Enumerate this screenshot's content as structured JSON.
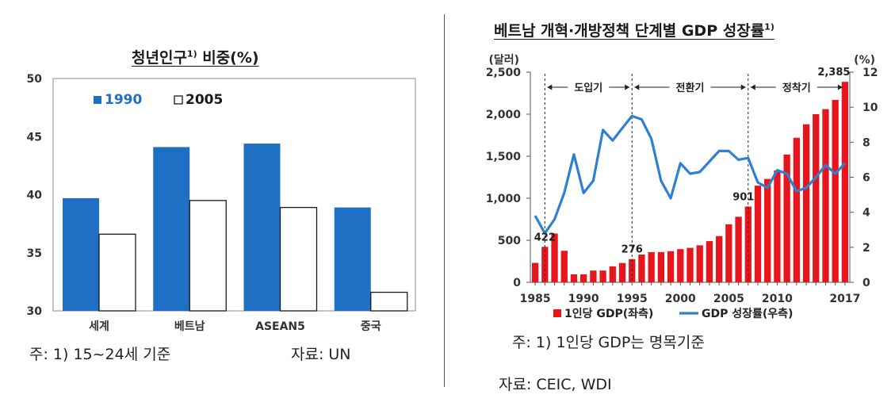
{
  "left_panel": {
    "title": "청년인구",
    "title_sup": "1)",
    "title_suffix": " 비중(%)",
    "note": "주: 1) 15~24세 기준",
    "source": "자료: UN"
  },
  "right_panel": {
    "title": "베트남 개혁·개방정책 단계별 GDP 성장률",
    "title_sup": "1)",
    "note": "주: 1) 1인당 GDP는 명목기준",
    "source": "자료: CEIC, WDI"
  },
  "colors": {
    "primary_bar": "#1f6fc5",
    "secondary_bar": "#ffffff",
    "gdp_bar": "#e8151c",
    "growth_line": "#2f7fd2"
  },
  "chart_data": [
    {
      "type": "bar",
      "categories": [
        "세계",
        "베트남",
        "ASEAN5",
        "중국"
      ],
      "series": [
        {
          "name": "1990",
          "values": [
            39.7,
            44.1,
            44.4,
            38.9
          ]
        },
        {
          "name": "2005",
          "values": [
            36.6,
            39.5,
            38.9,
            31.6
          ]
        }
      ],
      "ylim": [
        30,
        50
      ],
      "yticks": [
        "30",
        "35",
        "40",
        "45",
        "50"
      ],
      "legend_position": "top-left",
      "grid": false
    },
    {
      "type": "bar+line",
      "x": [
        1985,
        1986,
        1987,
        1988,
        1989,
        1990,
        1991,
        1992,
        1993,
        1994,
        1995,
        1996,
        1997,
        1998,
        1999,
        2000,
        2001,
        2002,
        2003,
        2004,
        2005,
        2006,
        2007,
        2008,
        2009,
        2010,
        2011,
        2012,
        2013,
        2014,
        2015,
        2016,
        2017
      ],
      "xticks": [
        "1985",
        "1990",
        "1995",
        "2000",
        "2005",
        "2010",
        "2017"
      ],
      "left_unit": "(달러)",
      "right_unit": "(%)",
      "left_ylim": [
        0,
        2500
      ],
      "right_ylim": [
        0,
        12
      ],
      "left_yticks": [
        "0",
        "500",
        "1,000",
        "1,500",
        "2,000",
        "2,500"
      ],
      "right_yticks": [
        "0",
        "2",
        "4",
        "6",
        "8",
        "10",
        "12"
      ],
      "series": [
        {
          "name": "1인당 GDP(좌측)",
          "axis": "left",
          "kind": "bar",
          "values": [
            231,
            422,
            580,
            375,
            95,
            95,
            140,
            140,
            190,
            230,
            276,
            330,
            360,
            360,
            370,
            395,
            410,
            440,
            490,
            550,
            690,
            780,
            901,
            1150,
            1230,
            1330,
            1520,
            1720,
            1880,
            2000,
            2060,
            2170,
            2385
          ]
        },
        {
          "name": "GDP 성장률(우측)",
          "axis": "right",
          "kind": "line",
          "values": [
            3.8,
            2.8,
            3.6,
            5.1,
            7.3,
            5.1,
            5.8,
            8.7,
            8.1,
            8.8,
            9.5,
            9.3,
            8.2,
            5.8,
            4.8,
            6.8,
            6.2,
            6.3,
            6.9,
            7.5,
            7.5,
            7.0,
            7.1,
            5.7,
            5.4,
            6.4,
            6.2,
            5.2,
            5.4,
            6.0,
            6.7,
            6.2,
            6.8
          ]
        }
      ],
      "data_labels": [
        {
          "x": 1986,
          "text": "422"
        },
        {
          "x": 1995,
          "text": "276"
        },
        {
          "x": 2007,
          "text": "901"
        },
        {
          "x": 2017,
          "text": "2,385"
        }
      ],
      "phases": [
        {
          "label": "도입기",
          "start": 1986,
          "end": 1995
        },
        {
          "label": "전환기",
          "start": 1995,
          "end": 2007
        },
        {
          "label": "정착기",
          "start": 2007,
          "end": 2017
        }
      ],
      "legend_position": "bottom",
      "grid": false
    }
  ]
}
